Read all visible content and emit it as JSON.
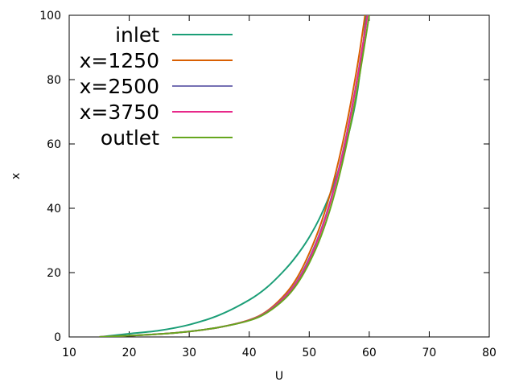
{
  "chart_data": {
    "type": "line",
    "title": "",
    "xlabel": "U",
    "ylabel": "x",
    "xlim": [
      10,
      80
    ],
    "ylim": [
      0,
      100
    ],
    "xticks": [
      10,
      20,
      30,
      40,
      50,
      60,
      70,
      80
    ],
    "yticks": [
      0,
      20,
      40,
      60,
      80,
      100
    ],
    "grid": false,
    "legend_position": "top-left",
    "series": [
      {
        "name": "inlet",
        "color": "#1b9e77",
        "x": [
          15,
          20,
          25,
          30,
          35,
          40,
          43,
          46,
          48,
          50,
          52,
          54,
          56,
          58,
          59.5
        ],
        "y": [
          0,
          1,
          2,
          3.8,
          6.8,
          11.5,
          15.5,
          21,
          25.5,
          31,
          38,
          47,
          59,
          76,
          100
        ]
      },
      {
        "name": "x=1250",
        "color": "#d95f02",
        "x": [
          15,
          20,
          25,
          30,
          35,
          40,
          43,
          46,
          48,
          50,
          52,
          54,
          56,
          58,
          59.3
        ],
        "y": [
          0,
          0.4,
          0.9,
          1.7,
          3,
          5.3,
          8.1,
          13.3,
          18.5,
          26,
          35.5,
          48,
          64,
          84,
          100
        ]
      },
      {
        "name": "x=2500",
        "color": "#7570b3",
        "x": [
          15,
          20,
          25,
          30,
          35,
          40,
          43,
          46,
          48,
          50,
          52,
          54,
          56,
          58,
          59.7
        ],
        "y": [
          0,
          0.4,
          0.9,
          1.7,
          3,
          5.2,
          7.9,
          12.7,
          17.5,
          24.5,
          33.5,
          45.5,
          61,
          80.5,
          100
        ]
      },
      {
        "name": "x=3750",
        "color": "#e7298a",
        "x": [
          15,
          20,
          25,
          30,
          35,
          40,
          43,
          46,
          48,
          50,
          52,
          54,
          56,
          58,
          59.7
        ],
        "y": [
          0,
          0.4,
          0.9,
          1.7,
          3,
          5.2,
          7.8,
          12.5,
          17.2,
          24,
          33,
          45,
          60.5,
          80,
          100
        ]
      },
      {
        "name": "outlet",
        "color": "#66a61e",
        "x": [
          15,
          20,
          25,
          30,
          35,
          40,
          43,
          46,
          48,
          50,
          52,
          54,
          56,
          58,
          60
        ],
        "y": [
          0,
          0.4,
          0.9,
          1.7,
          3,
          5.1,
          7.6,
          12,
          16.5,
          23,
          31.5,
          43,
          58,
          77,
          100
        ]
      }
    ]
  }
}
